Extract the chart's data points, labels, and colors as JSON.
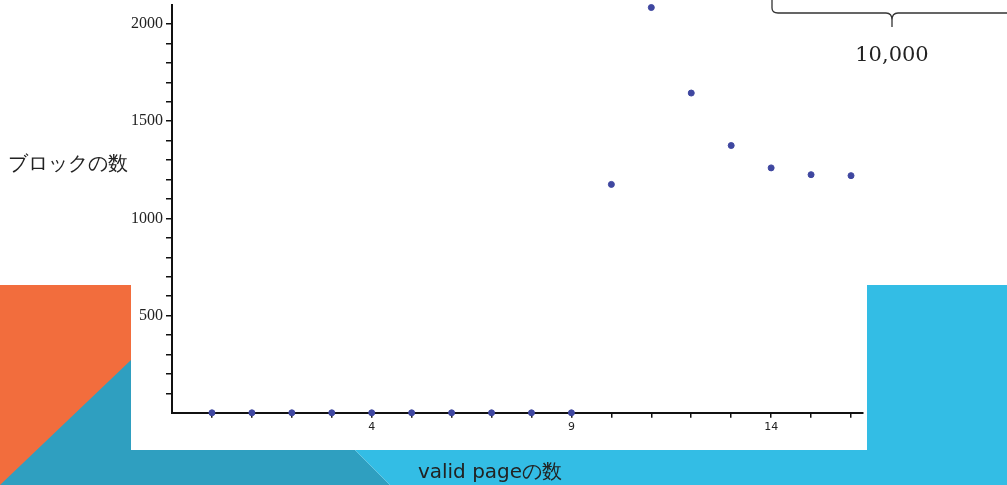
{
  "chart_data": {
    "type": "scatter",
    "xlabel": "valid pageの数",
    "ylabel": "ブロックの数",
    "annotations": [
      "10,000"
    ],
    "x": [
      0,
      1,
      2,
      3,
      4,
      5,
      6,
      7,
      8,
      9,
      10,
      11,
      12,
      13,
      14,
      15,
      16
    ],
    "series": [
      {
        "color": "#3f47a0",
        "values": [
          0,
          0,
          0,
          0,
          0,
          0,
          0,
          0,
          0,
          0,
          1175,
          2085,
          1645,
          1375,
          1260,
          1225,
          1220
        ]
      }
    ],
    "xlim": [
      -1,
      16.3
    ],
    "ylim": [
      0,
      2100
    ],
    "xticks": [
      {
        "value": 0,
        "label": null
      },
      {
        "value": 1,
        "label": null
      },
      {
        "value": 2,
        "label": null
      },
      {
        "value": 3,
        "label": null
      },
      4,
      {
        "value": 5,
        "label": null
      },
      {
        "value": 6,
        "label": null
      },
      {
        "value": 7,
        "label": null
      },
      {
        "value": 8,
        "label": null
      },
      9,
      {
        "value": 10,
        "label": null
      },
      {
        "value": 11,
        "label": null
      },
      {
        "value": 12,
        "label": null
      },
      {
        "value": 13,
        "label": null
      },
      14,
      {
        "value": 15,
        "label": null
      },
      {
        "value": 16,
        "label": null
      }
    ],
    "yticks": [
      {
        "value": 100,
        "label": null
      },
      {
        "value": 200,
        "label": null
      },
      {
        "value": 300,
        "label": null
      },
      {
        "value": 400,
        "label": null
      },
      500,
      {
        "value": 600,
        "label": null
      },
      {
        "value": 700,
        "label": null
      },
      {
        "value": 800,
        "label": null
      },
      {
        "value": 900,
        "label": null
      },
      1000,
      {
        "value": 1100,
        "label": null
      },
      {
        "value": 1200,
        "label": null
      },
      {
        "value": 1300,
        "label": null
      },
      {
        "value": 1400,
        "label": null
      },
      1500,
      {
        "value": 1600,
        "label": null
      },
      {
        "value": 1700,
        "label": null
      },
      {
        "value": 1800,
        "label": null
      },
      {
        "value": 1900,
        "label": null
      },
      2000
    ],
    "grid": false,
    "legend": false,
    "marker": "circle"
  }
}
